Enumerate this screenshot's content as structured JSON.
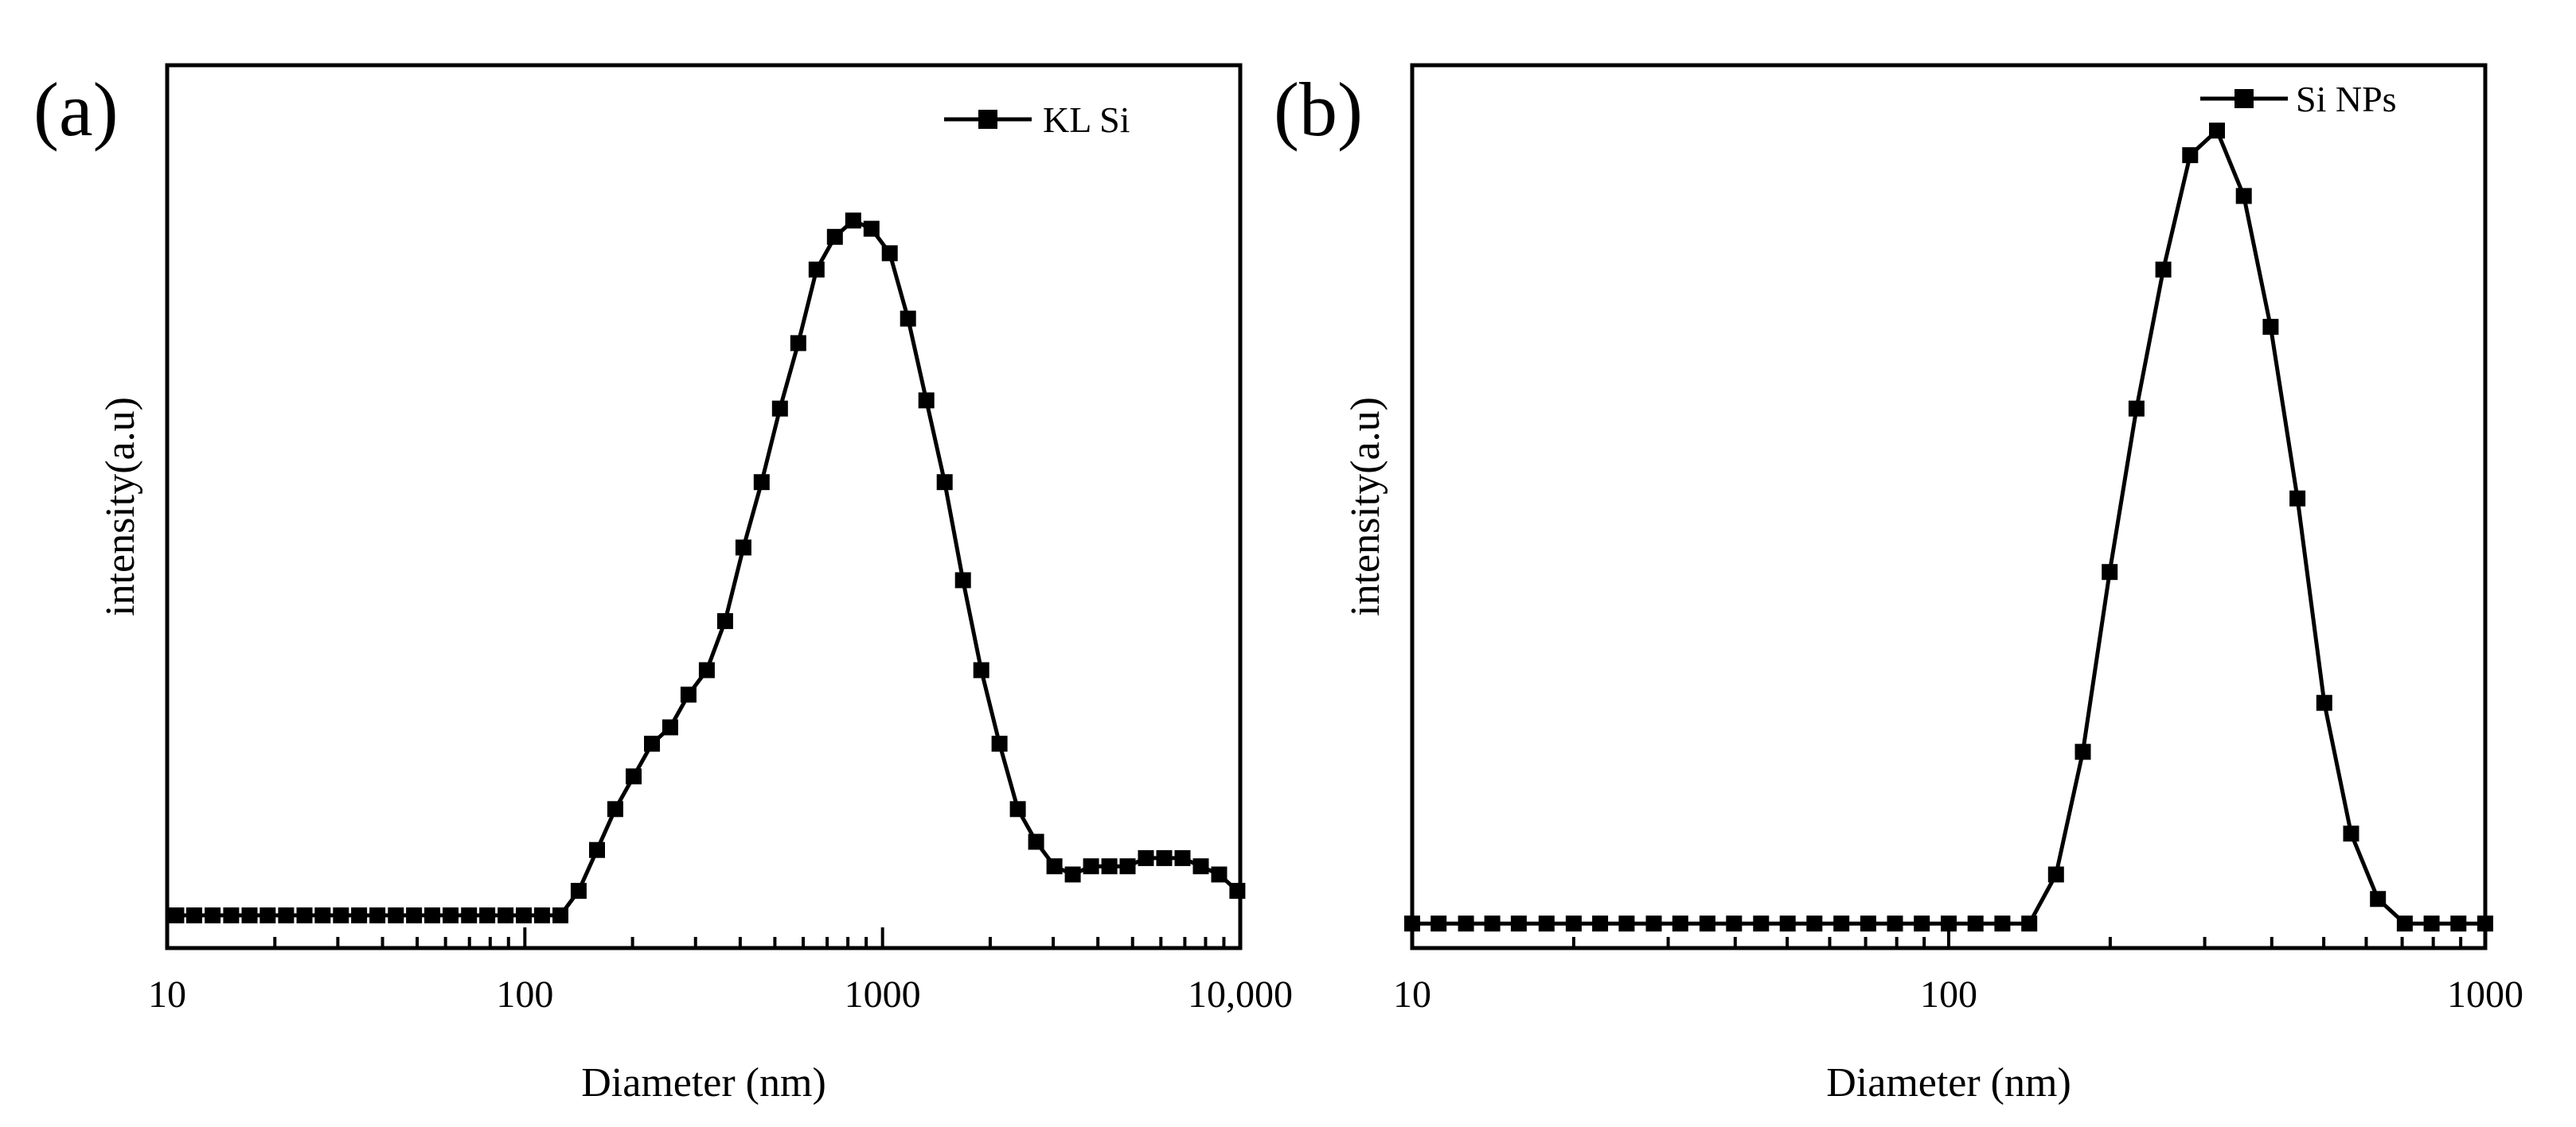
{
  "chart_data": [
    {
      "panel_label": "(a)",
      "type": "line",
      "xscale": "log",
      "xlim": [
        10,
        10000
      ],
      "ylim": [
        0,
        1.08
      ],
      "xlabel": "Diameter (nm)",
      "ylabel": "intensity(a.u)",
      "xtick_labels": [
        {
          "value": 10,
          "label": "10"
        },
        {
          "value": 100,
          "label": "100"
        },
        {
          "value": 1000,
          "label": "1000"
        },
        {
          "value": 10000,
          "label": "10,000"
        }
      ],
      "legend_position": "top-right",
      "series": [
        {
          "name": "KL Si",
          "marker": "square",
          "x": [
            10.6,
            11.9,
            13.4,
            15.1,
            17.0,
            19.1,
            21.5,
            24.2,
            27.2,
            30.6,
            34.4,
            38.7,
            43.6,
            49.0,
            55.1,
            62.0,
            69.8,
            78.5,
            88.3,
            99.3,
            111.7,
            125.7,
            141.4,
            159.1,
            179.0,
            201.4,
            226.6,
            254.9,
            286.7,
            322.6,
            362.9,
            408.3,
            459.3,
            516.7,
            581.3,
            654.0,
            735.7,
            827.7,
            931.2,
            1047.6,
            1178.5,
            1325.8,
            1491.6,
            1678.0,
            1887.8,
            2123.8,
            2389.2,
            2687.9,
            3023.9,
            3401.9,
            3827.1,
            4305.5,
            4843.7,
            5449.2,
            6130.3,
            6896.6,
            7758.7,
            8728.5,
            9819.6
          ],
          "values": [
            0.04,
            0.04,
            0.04,
            0.04,
            0.04,
            0.04,
            0.04,
            0.04,
            0.04,
            0.04,
            0.04,
            0.04,
            0.04,
            0.04,
            0.04,
            0.04,
            0.04,
            0.04,
            0.04,
            0.04,
            0.04,
            0.04,
            0.07,
            0.12,
            0.17,
            0.21,
            0.25,
            0.27,
            0.31,
            0.34,
            0.4,
            0.49,
            0.57,
            0.66,
            0.74,
            0.83,
            0.87,
            0.89,
            0.88,
            0.85,
            0.77,
            0.67,
            0.57,
            0.45,
            0.34,
            0.25,
            0.17,
            0.13,
            0.1,
            0.09,
            0.1,
            0.1,
            0.1,
            0.11,
            0.11,
            0.11,
            0.1,
            0.09,
            0.07
          ]
        }
      ]
    },
    {
      "panel_label": "(b)",
      "type": "line",
      "xscale": "log",
      "xlim": [
        10,
        1000
      ],
      "ylim": [
        0,
        1.08
      ],
      "xlabel": "Diameter (nm)",
      "ylabel": "intensity(a.u)",
      "xtick_labels": [
        {
          "value": 10,
          "label": "10"
        },
        {
          "value": 100,
          "label": "100"
        },
        {
          "value": 1000,
          "label": "1000"
        }
      ],
      "legend_position": "top-right",
      "series": [
        {
          "name": "Si NPs",
          "marker": "square",
          "x": [
            10.0,
            11.2,
            12.6,
            14.1,
            15.8,
            17.8,
            20.0,
            22.4,
            25.1,
            28.2,
            31.6,
            35.5,
            39.8,
            44.7,
            50.1,
            56.2,
            63.1,
            70.8,
            79.4,
            89.1,
            100.0,
            112.2,
            125.9,
            141.3,
            158.5,
            177.8,
            199.5,
            223.9,
            251.2,
            281.8,
            316.2,
            354.8,
            398.1,
            446.7,
            501.2,
            562.3,
            631.0,
            707.9,
            794.3,
            891.3,
            1000.0
          ],
          "values": [
            0.03,
            0.03,
            0.03,
            0.03,
            0.03,
            0.03,
            0.03,
            0.03,
            0.03,
            0.03,
            0.03,
            0.03,
            0.03,
            0.03,
            0.03,
            0.03,
            0.03,
            0.03,
            0.03,
            0.03,
            0.03,
            0.03,
            0.03,
            0.03,
            0.09,
            0.24,
            0.46,
            0.66,
            0.83,
            0.97,
            1.0,
            0.92,
            0.76,
            0.55,
            0.3,
            0.14,
            0.06,
            0.03,
            0.03,
            0.03,
            0.03
          ]
        }
      ]
    }
  ]
}
